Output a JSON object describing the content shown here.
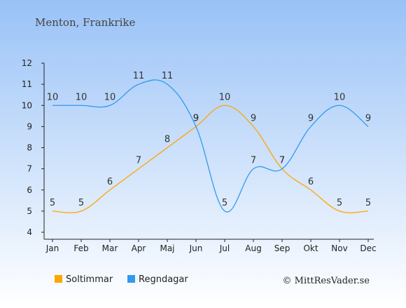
{
  "title": "Menton, Frankrike",
  "credit": "© MittResVader.se",
  "chart_data": {
    "type": "line",
    "categories": [
      "Jan",
      "Feb",
      "Mar",
      "Apr",
      "Maj",
      "Jun",
      "Jul",
      "Aug",
      "Sep",
      "Okt",
      "Nov",
      "Dec"
    ],
    "ylim": [
      4,
      12
    ],
    "yticks": [
      4,
      5,
      6,
      7,
      8,
      9,
      10,
      11,
      12
    ],
    "grid": false,
    "legend_position": "bottom-left",
    "series": [
      {
        "name": "Soltimmar",
        "color": "#FFA500",
        "values": [
          5,
          5,
          6,
          7,
          8,
          9,
          10,
          9,
          7,
          6,
          5,
          5
        ]
      },
      {
        "name": "Regndagar",
        "color": "#3399EE",
        "values": [
          10,
          10,
          10,
          11,
          11,
          9,
          5,
          7,
          7,
          9,
          10,
          9
        ]
      }
    ]
  },
  "colors": {
    "bg_top": "#99C2F7",
    "bg_bottom": "#FFFFFF",
    "axis": "#222222"
  }
}
